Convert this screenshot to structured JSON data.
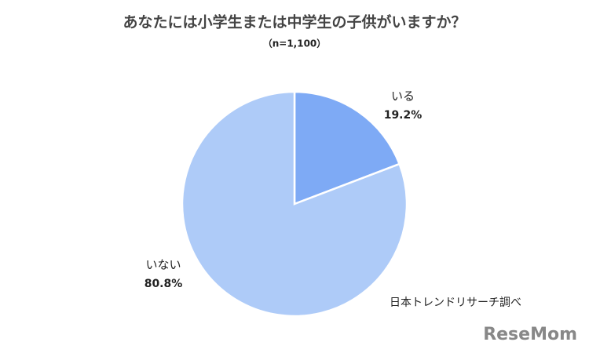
{
  "chart_data": {
    "type": "pie",
    "title": "あなたには小学生または中学生の子供がいますか？",
    "subtitle": "（n=1,100）",
    "categories": [
      "いる",
      "いない"
    ],
    "values": [
      19.2,
      80.8
    ],
    "value_labels": [
      "19.2%",
      "80.8%"
    ],
    "colors": [
      "#7eaaf5",
      "#aecbf8"
    ],
    "source": "日本トレンドリサーチ調べ",
    "logo": "ReseMom"
  }
}
